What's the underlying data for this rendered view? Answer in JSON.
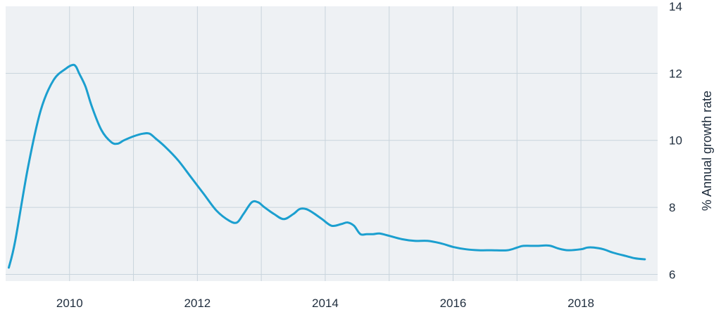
{
  "chart_data": {
    "type": "line",
    "title": "",
    "xlabel": "",
    "ylabel": "% Annual growth rate",
    "y_axis_side": "right",
    "xlim": [
      2009.0,
      2019.2
    ],
    "ylim": [
      5.8,
      14
    ],
    "x_ticks": [
      2010,
      2012,
      2014,
      2016,
      2018
    ],
    "x_tick_labels": [
      "2010",
      "2012",
      "2014",
      "2016",
      "2018"
    ],
    "y_ticks": [
      6,
      8,
      10,
      12,
      14
    ],
    "y_tick_labels": [
      "6",
      "8",
      "10",
      "12",
      "14"
    ],
    "grid": true,
    "colors": {
      "line": "#1b9fcf",
      "plot_background": "#eef1f4",
      "grid": "#c8d4dc",
      "text": "#1f2d3d"
    },
    "series": [
      {
        "x": [
          2009.05,
          2009.15,
          2009.35,
          2009.55,
          2009.75,
          2009.95,
          2010.05,
          2010.1,
          2010.15,
          2010.25,
          2010.35,
          2010.5,
          2010.65,
          2010.75,
          2010.85,
          2011.0,
          2011.15,
          2011.25,
          2011.35,
          2011.5,
          2011.7,
          2011.9,
          2012.1,
          2012.3,
          2012.5,
          2012.62,
          2012.72,
          2012.85,
          2012.95,
          2013.05,
          2013.2,
          2013.35,
          2013.5,
          2013.6,
          2013.7,
          2013.8,
          2013.95,
          2014.1,
          2014.25,
          2014.35,
          2014.45,
          2014.55,
          2014.65,
          2014.75,
          2014.85,
          2015.0,
          2015.2,
          2015.4,
          2015.6,
          2015.8,
          2016.0,
          2016.2,
          2016.4,
          2016.6,
          2016.85,
          2017.0,
          2017.1,
          2017.3,
          2017.5,
          2017.65,
          2017.8,
          2018.0,
          2018.1,
          2018.2,
          2018.35,
          2018.5,
          2018.7,
          2018.85,
          2019.0
        ],
        "y": [
          6.2,
          7.0,
          9.2,
          10.9,
          11.8,
          12.15,
          12.25,
          12.2,
          12.0,
          11.6,
          11.0,
          10.3,
          9.95,
          9.9,
          10.0,
          10.12,
          10.2,
          10.2,
          10.05,
          9.8,
          9.4,
          8.9,
          8.4,
          7.9,
          7.6,
          7.55,
          7.8,
          8.15,
          8.15,
          8.0,
          7.8,
          7.65,
          7.8,
          7.95,
          7.95,
          7.85,
          7.65,
          7.45,
          7.5,
          7.55,
          7.45,
          7.2,
          7.2,
          7.2,
          7.22,
          7.15,
          7.05,
          7.0,
          7.0,
          6.93,
          6.82,
          6.75,
          6.72,
          6.72,
          6.72,
          6.8,
          6.85,
          6.85,
          6.86,
          6.77,
          6.72,
          6.75,
          6.8,
          6.8,
          6.75,
          6.65,
          6.55,
          6.48,
          6.45
        ]
      }
    ]
  }
}
